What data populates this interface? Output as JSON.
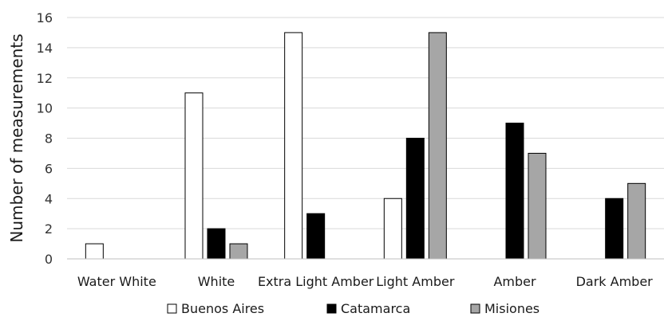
{
  "chart_data": {
    "type": "bar",
    "title": "",
    "xlabel": "",
    "ylabel": "Number of measurements",
    "ylim": [
      0,
      16
    ],
    "yticks": [
      0,
      2,
      4,
      6,
      8,
      10,
      12,
      14,
      16
    ],
    "grid": true,
    "legend_position": "bottom",
    "categories": [
      "Water White",
      "White",
      "Extra Light Amber",
      "Light Amber",
      "Amber",
      "Dark Amber"
    ],
    "series": [
      {
        "name": "Buenos Aires",
        "color": "#ffffff",
        "values": [
          1,
          11,
          15,
          4,
          0,
          0
        ]
      },
      {
        "name": "Catamarca",
        "color": "#000000",
        "values": [
          0,
          2,
          3,
          8,
          9,
          4
        ]
      },
      {
        "name": "Misiones",
        "color": "#a6a6a6",
        "values": [
          0,
          1,
          0,
          15,
          7,
          5
        ]
      }
    ]
  }
}
